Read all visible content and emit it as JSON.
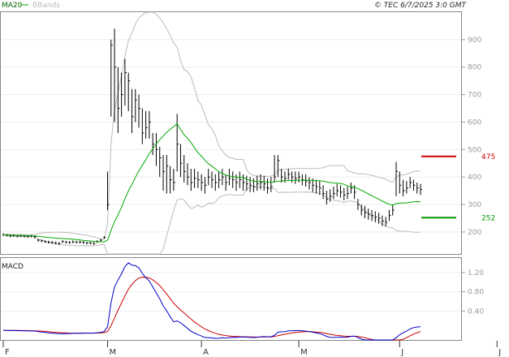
{
  "chart_data": [
    {
      "type": "line",
      "panel": "price",
      "legend": [
        {
          "name": "MA20",
          "color": "#00aa00"
        },
        {
          "name": "BBands",
          "color": "#bbbbbb"
        }
      ],
      "copyright": "© TEC 6/7/2025 3:0 GMT",
      "y_ticks": [
        200,
        300,
        400,
        500,
        600,
        700,
        800,
        900
      ],
      "ylim": [
        120,
        1000
      ],
      "x_months": [
        {
          "label": "F",
          "index": 0
        },
        {
          "label": "M",
          "index": 30
        },
        {
          "label": "A",
          "index": 57
        },
        {
          "label": "M",
          "index": 85
        },
        {
          "label": "J",
          "index": 114
        },
        {
          "label": "J",
          "index": 142
        }
      ],
      "price": {
        "color": "#000000",
        "close": [
          190,
          188,
          186,
          187,
          185,
          186,
          185,
          184,
          185,
          182,
          170,
          168,
          165,
          163,
          162,
          160,
          158,
          165,
          163,
          162,
          164,
          163,
          163,
          162,
          160,
          160,
          158,
          165,
          170,
          180,
          300,
          880,
          800,
          650,
          700,
          780,
          750,
          620,
          680,
          650,
          560,
          580,
          600,
          520,
          500,
          470,
          420,
          440,
          390,
          380,
          520,
          450,
          420,
          400,
          380,
          395,
          390,
          380,
          370,
          400,
          390,
          380,
          390,
          400,
          380,
          395,
          390,
          380,
          390,
          380,
          375,
          370,
          365,
          375,
          380,
          375,
          360,
          365,
          400,
          460,
          400,
          395,
          410,
          400,
          395,
          400,
          390,
          385,
          380,
          370,
          365,
          360,
          340,
          320,
          330,
          340,
          350,
          345,
          335,
          340,
          360,
          345,
          300,
          280,
          270,
          265,
          260,
          255,
          250,
          240,
          235,
          260,
          280,
          420,
          370,
          350,
          360,
          380,
          370,
          360,
          355
        ],
        "high": [
          195,
          193,
          191,
          192,
          190,
          191,
          190,
          189,
          190,
          187,
          175,
          173,
          170,
          168,
          167,
          165,
          163,
          170,
          168,
          167,
          169,
          168,
          168,
          167,
          165,
          165,
          163,
          170,
          175,
          185,
          420,
          900,
          940,
          800,
          780,
          830,
          780,
          720,
          720,
          700,
          650,
          640,
          640,
          560,
          560,
          510,
          480,
          480,
          440,
          430,
          630,
          520,
          480,
          450,
          430,
          430,
          420,
          410,
          400,
          430,
          420,
          410,
          420,
          430,
          410,
          430,
          420,
          410,
          420,
          410,
          405,
          400,
          395,
          405,
          410,
          405,
          395,
          400,
          480,
          480,
          430,
          420,
          430,
          420,
          420,
          420,
          410,
          410,
          400,
          395,
          390,
          385,
          370,
          350,
          355,
          365,
          375,
          370,
          360,
          365,
          380,
          370,
          320,
          300,
          295,
          285,
          280,
          275,
          270,
          260,
          255,
          280,
          300,
          455,
          420,
          390,
          385,
          400,
          390,
          380,
          375
        ],
        "low": [
          185,
          183,
          181,
          182,
          180,
          181,
          180,
          179,
          180,
          177,
          165,
          163,
          160,
          158,
          157,
          155,
          153,
          160,
          158,
          157,
          159,
          158,
          158,
          157,
          155,
          155,
          153,
          160,
          165,
          175,
          280,
          620,
          600,
          560,
          620,
          660,
          640,
          560,
          600,
          580,
          520,
          540,
          540,
          480,
          440,
          400,
          350,
          340,
          340,
          350,
          420,
          400,
          380,
          370,
          350,
          360,
          360,
          350,
          340,
          370,
          360,
          350,
          360,
          370,
          350,
          370,
          360,
          350,
          360,
          350,
          350,
          345,
          345,
          350,
          355,
          350,
          340,
          345,
          380,
          400,
          380,
          380,
          390,
          380,
          375,
          380,
          370,
          365,
          355,
          345,
          340,
          335,
          320,
          300,
          310,
          320,
          330,
          325,
          315,
          320,
          340,
          320,
          280,
          260,
          250,
          245,
          240,
          235,
          230,
          222,
          220,
          240,
          260,
          330,
          340,
          330,
          340,
          360,
          350,
          340,
          335
        ]
      },
      "ma20": {
        "name": "MA20",
        "color": "#00aa00"
      },
      "bbands": {
        "name": "BBands",
        "color": "#bbbbbb"
      },
      "markers": [
        {
          "label": "475",
          "value": 475,
          "color": "#cc0000"
        },
        {
          "label": "252",
          "value": 252,
          "color": "#009900"
        }
      ]
    },
    {
      "type": "line",
      "panel": "macd",
      "title": "MACD",
      "y_ticks": [
        {
          "label": "0.40",
          "value": 40
        },
        {
          "label": "0.80",
          "value": 80
        },
        {
          "label": "1.20",
          "value": 120
        }
      ],
      "ylim": [
        -20,
        150
      ],
      "macd_color": "#0000cc",
      "signal_color": "#cc0000"
    }
  ]
}
